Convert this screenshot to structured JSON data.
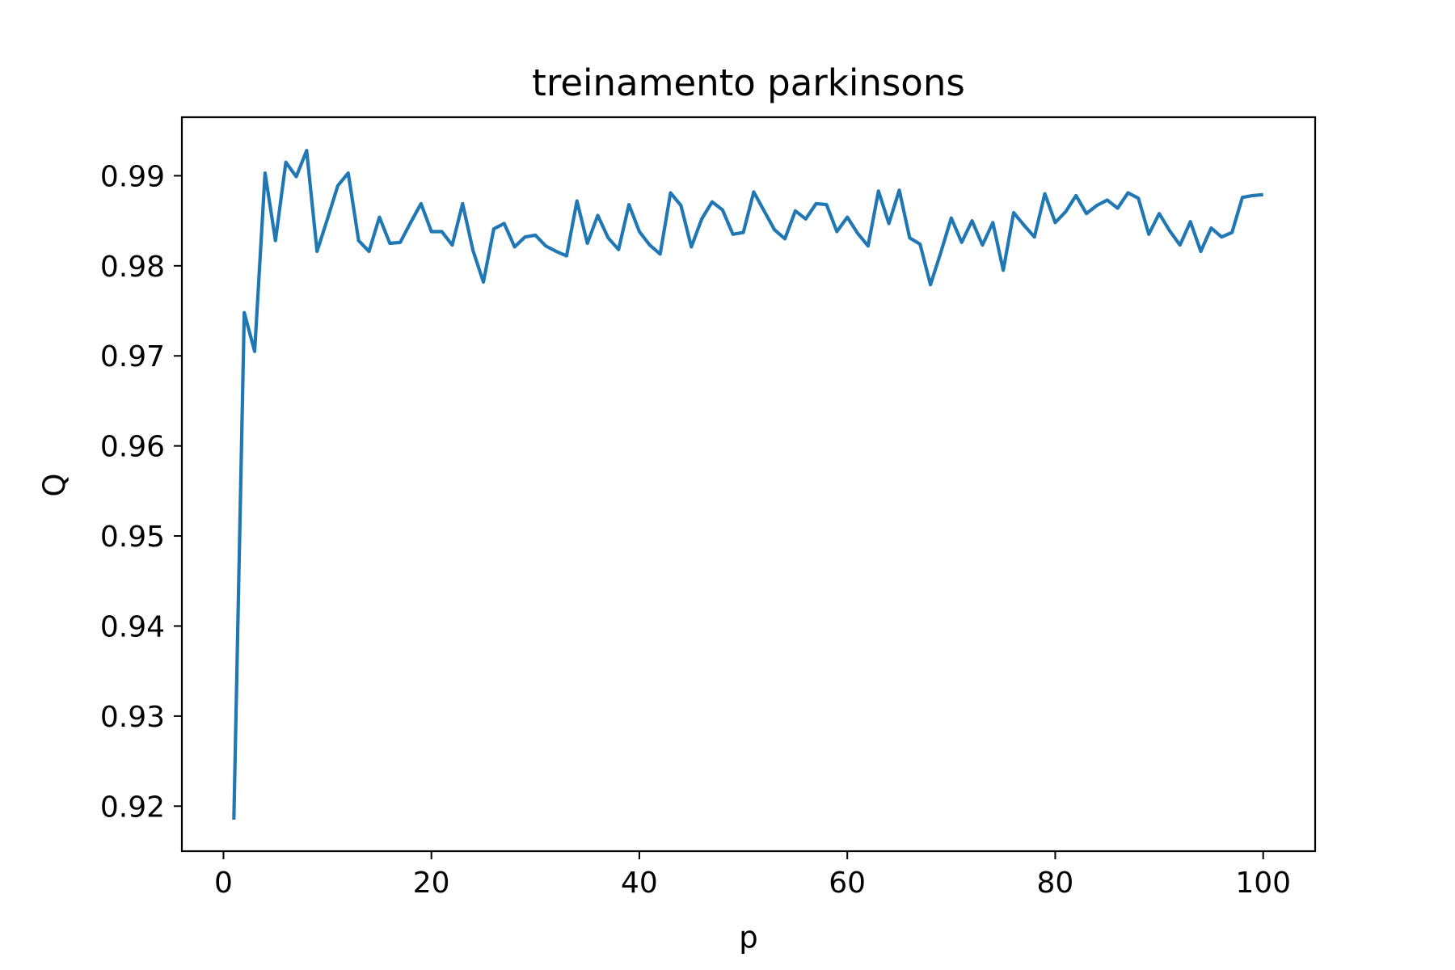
{
  "chart_data": {
    "type": "line",
    "title": "treinamento parkinsons",
    "xlabel": "p",
    "ylabel": "Q",
    "xlim": [
      -4,
      105
    ],
    "ylim": [
      0.915,
      0.9965
    ],
    "xticks": [
      0,
      20,
      40,
      60,
      80,
      100
    ],
    "xtick_labels": [
      "0",
      "20",
      "40",
      "60",
      "80",
      "100"
    ],
    "yticks": [
      0.92,
      0.93,
      0.94,
      0.95,
      0.96,
      0.97,
      0.98,
      0.99
    ],
    "ytick_labels": [
      "0.92",
      "0.93",
      "0.94",
      "0.95",
      "0.96",
      "0.97",
      "0.98",
      "0.99"
    ],
    "grid": false,
    "colors": {
      "line": "#1f77b4"
    },
    "series": [
      {
        "x": [
          1,
          2,
          3,
          4,
          5,
          6,
          7,
          8,
          9,
          10,
          11,
          12,
          13,
          14,
          15,
          16,
          17,
          18,
          19,
          20,
          21,
          22,
          23,
          24,
          25,
          26,
          27,
          28,
          29,
          30,
          31,
          32,
          33,
          34,
          35,
          36,
          37,
          38,
          39,
          40,
          41,
          42,
          43,
          44,
          45,
          46,
          47,
          48,
          49,
          50,
          51,
          52,
          53,
          54,
          55,
          56,
          57,
          58,
          59,
          60,
          61,
          62,
          63,
          64,
          65,
          66,
          67,
          68,
          69,
          70,
          71,
          72,
          73,
          74,
          75,
          76,
          77,
          78,
          79,
          80,
          81,
          82,
          83,
          84,
          85,
          86,
          87,
          88,
          89,
          90,
          91,
          92,
          93,
          94,
          95,
          96,
          97,
          98,
          99,
          100
        ],
        "values": [
          0.9185,
          0.9748,
          0.9705,
          0.9903,
          0.9828,
          0.9915,
          0.9899,
          0.9928,
          0.9816,
          0.9852,
          0.9889,
          0.9903,
          0.9828,
          0.9816,
          0.9854,
          0.9825,
          0.9826,
          0.9848,
          0.9869,
          0.9838,
          0.9838,
          0.9823,
          0.9869,
          0.9817,
          0.9782,
          0.9841,
          0.9847,
          0.9821,
          0.9832,
          0.9834,
          0.9822,
          0.9816,
          0.9811,
          0.9872,
          0.9825,
          0.9856,
          0.9831,
          0.9818,
          0.9868,
          0.9838,
          0.9823,
          0.9813,
          0.9881,
          0.9867,
          0.9821,
          0.9852,
          0.9871,
          0.9862,
          0.9835,
          0.9837,
          0.9882,
          0.9861,
          0.984,
          0.983,
          0.9861,
          0.9852,
          0.9869,
          0.9868,
          0.9838,
          0.9854,
          0.9836,
          0.9822,
          0.9883,
          0.9847,
          0.9884,
          0.9831,
          0.9824,
          0.9779,
          0.9815,
          0.9853,
          0.9826,
          0.985,
          0.9823,
          0.9848,
          0.9795,
          0.9859,
          0.9845,
          0.9832,
          0.988,
          0.9848,
          0.986,
          0.9878,
          0.9858,
          0.9867,
          0.9873,
          0.9864,
          0.9881,
          0.9875,
          0.9835,
          0.9858,
          0.9839,
          0.9823,
          0.9849,
          0.9816,
          0.9842,
          0.9832,
          0.9837,
          0.9876,
          0.9878,
          0.9879
        ]
      }
    ]
  }
}
